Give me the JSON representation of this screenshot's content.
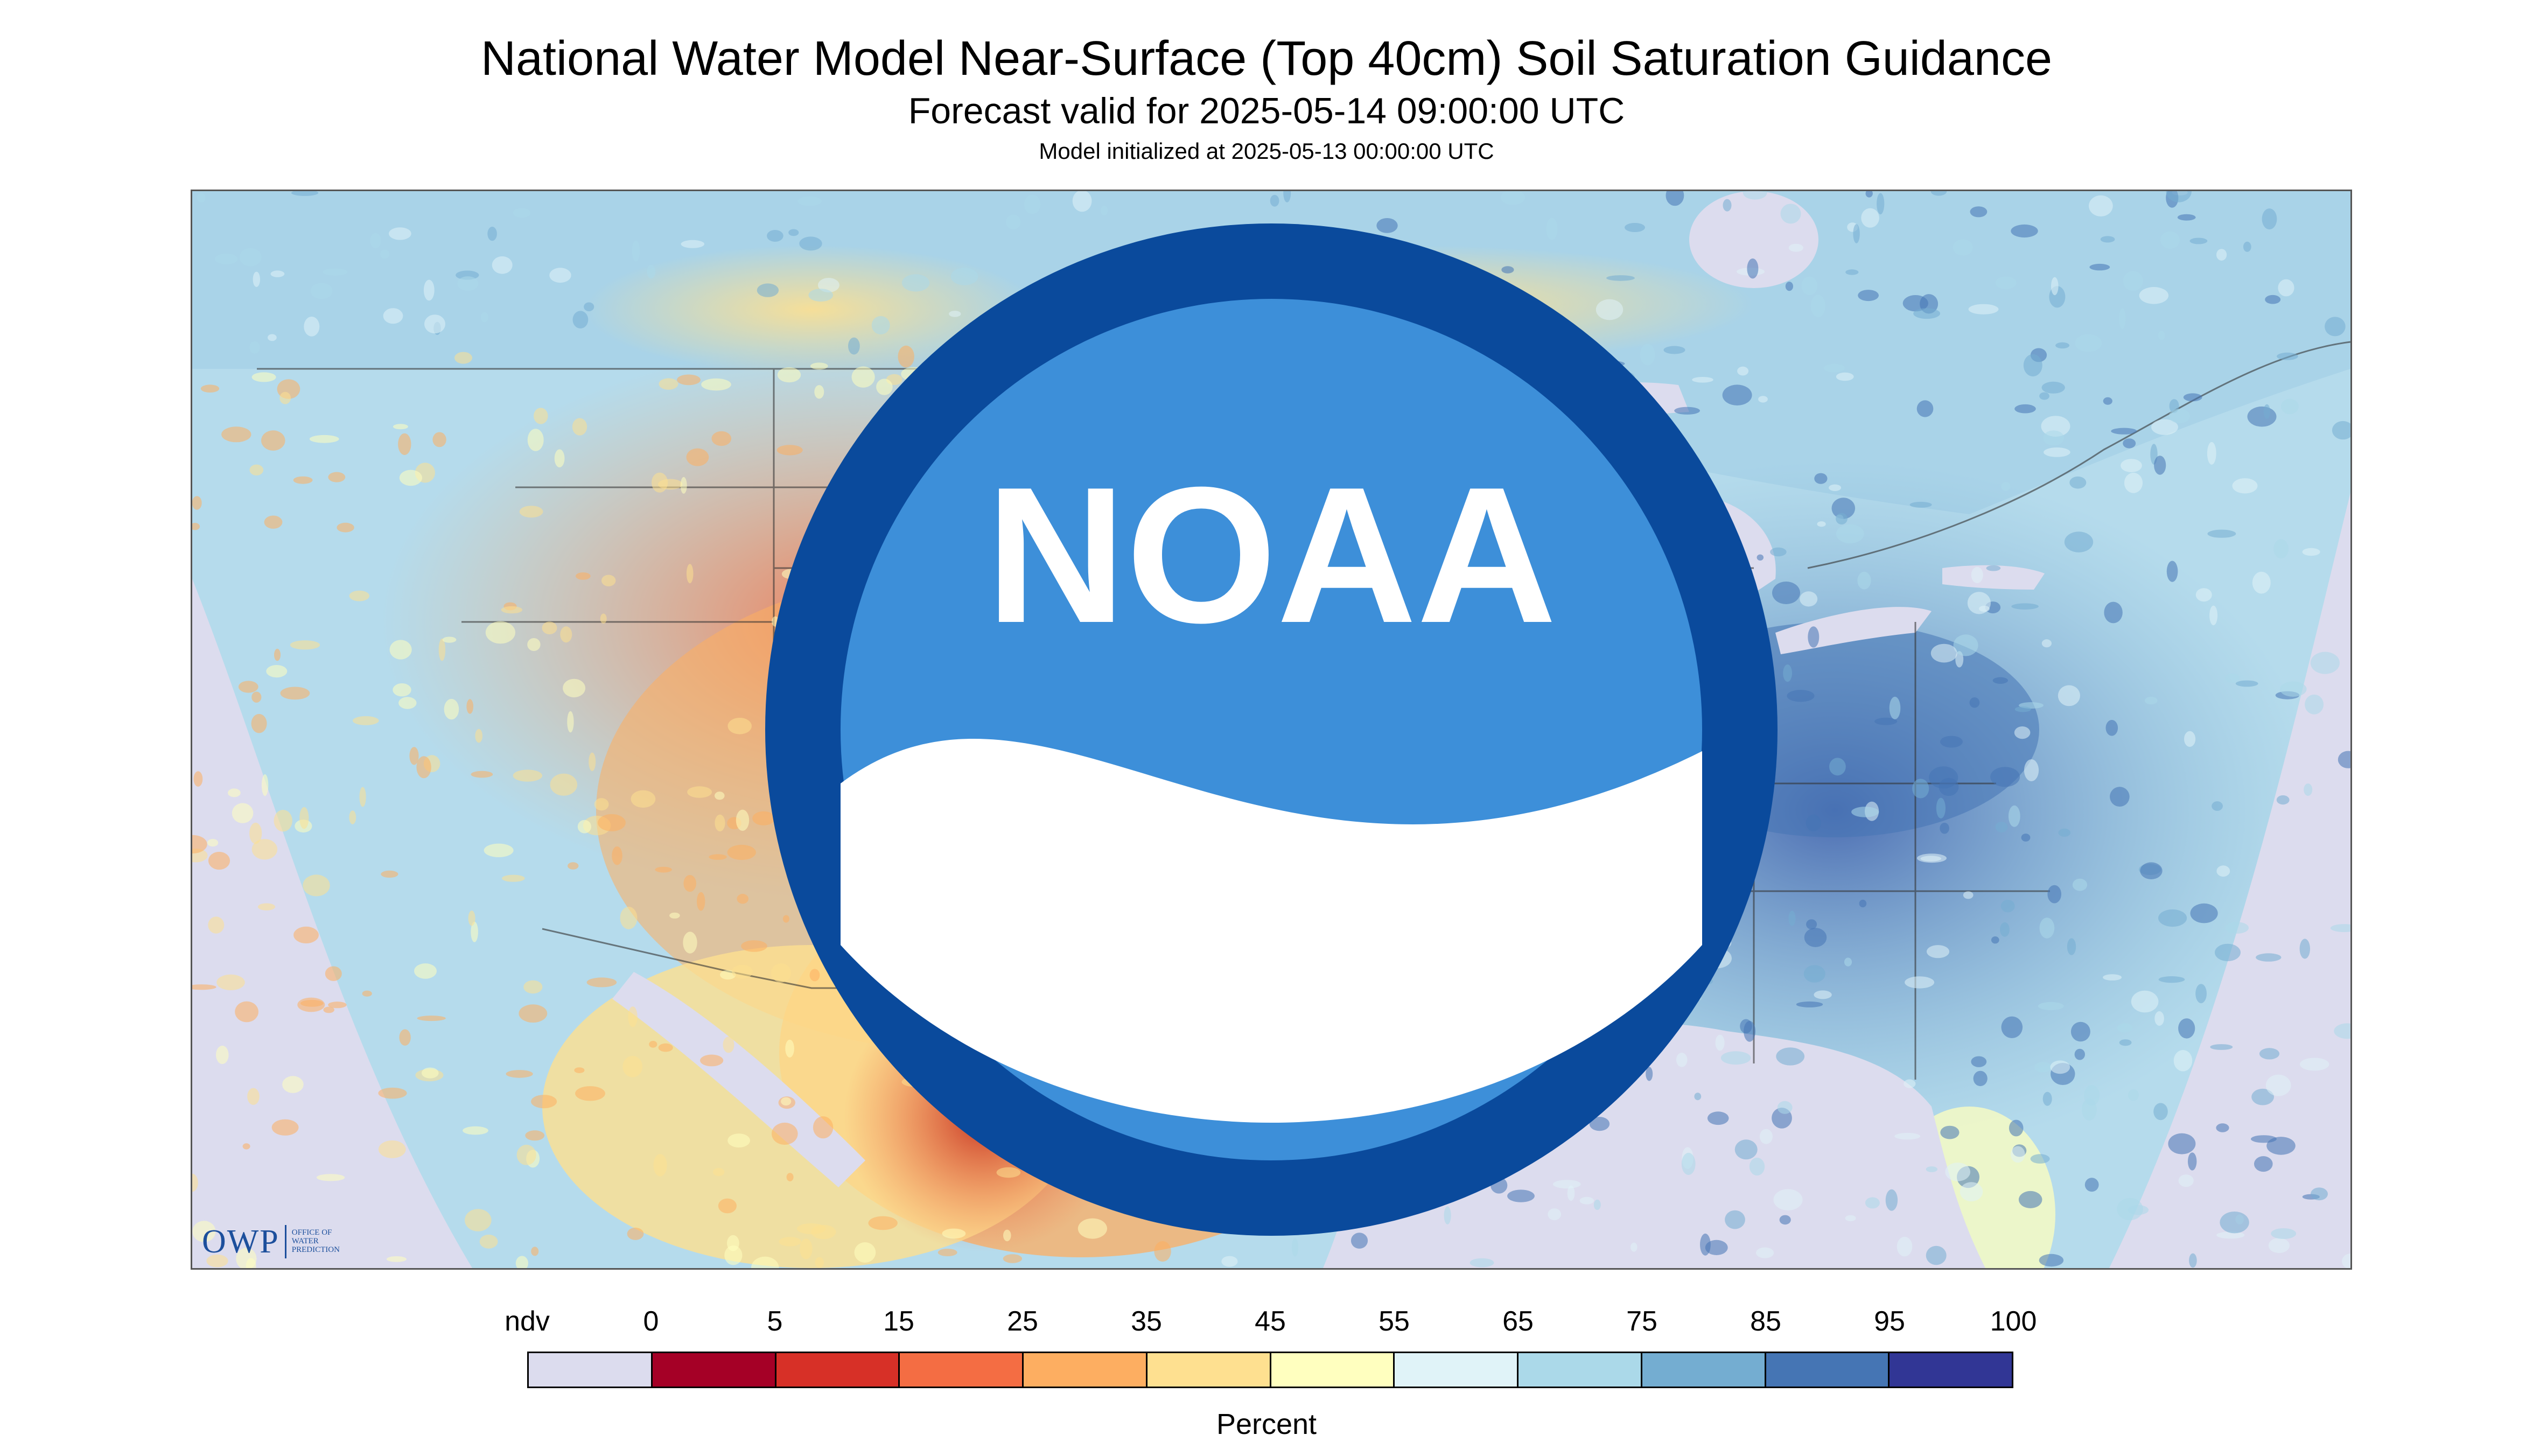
{
  "header": {
    "title": "National Water Model Near-Surface (Top 40cm) Soil Saturation Guidance",
    "subtitle": "Forecast valid for 2025-05-14 09:00:00 UTC",
    "initialized": "Model initialized at 2025-05-13 00:00:00 UTC"
  },
  "map": {
    "region": "Contiguous United States",
    "logos": {
      "owp": {
        "mark": "OWP",
        "text": [
          "OFFICE OF",
          "WATER",
          "PREDICTION"
        ]
      },
      "noaa": {
        "text": "NOAA",
        "icon": "noaa-logo-icon"
      }
    },
    "colors": {
      "no_data": "#dcdcee",
      "water": "#dcdcee",
      "dry_extreme": "#b2182b",
      "dry": "#f4a461",
      "moderate": "#fee090",
      "moist": "#e0f3f8",
      "wet": "#74add1",
      "saturated": "#313695"
    }
  },
  "legend": {
    "title": "Percent",
    "tick_labels": [
      "ndv",
      "0",
      "5",
      "15",
      "25",
      "35",
      "45",
      "55",
      "65",
      "75",
      "85",
      "95",
      "100"
    ],
    "swatches": [
      {
        "range": "ndv",
        "color": "#dcdcee"
      },
      {
        "range": "0-5",
        "color": "#a50026"
      },
      {
        "range": "5-15",
        "color": "#d73027"
      },
      {
        "range": "15-25",
        "color": "#f46d43"
      },
      {
        "range": "25-35",
        "color": "#fdae61"
      },
      {
        "range": "35-45",
        "color": "#fee090"
      },
      {
        "range": "45-55",
        "color": "#ffffbf"
      },
      {
        "range": "55-65",
        "color": "#e0f3f8"
      },
      {
        "range": "65-75",
        "color": "#abd9e9"
      },
      {
        "range": "75-85",
        "color": "#74add1"
      },
      {
        "range": "85-95",
        "color": "#4575b4"
      },
      {
        "range": "95-100",
        "color": "#313695"
      }
    ]
  }
}
